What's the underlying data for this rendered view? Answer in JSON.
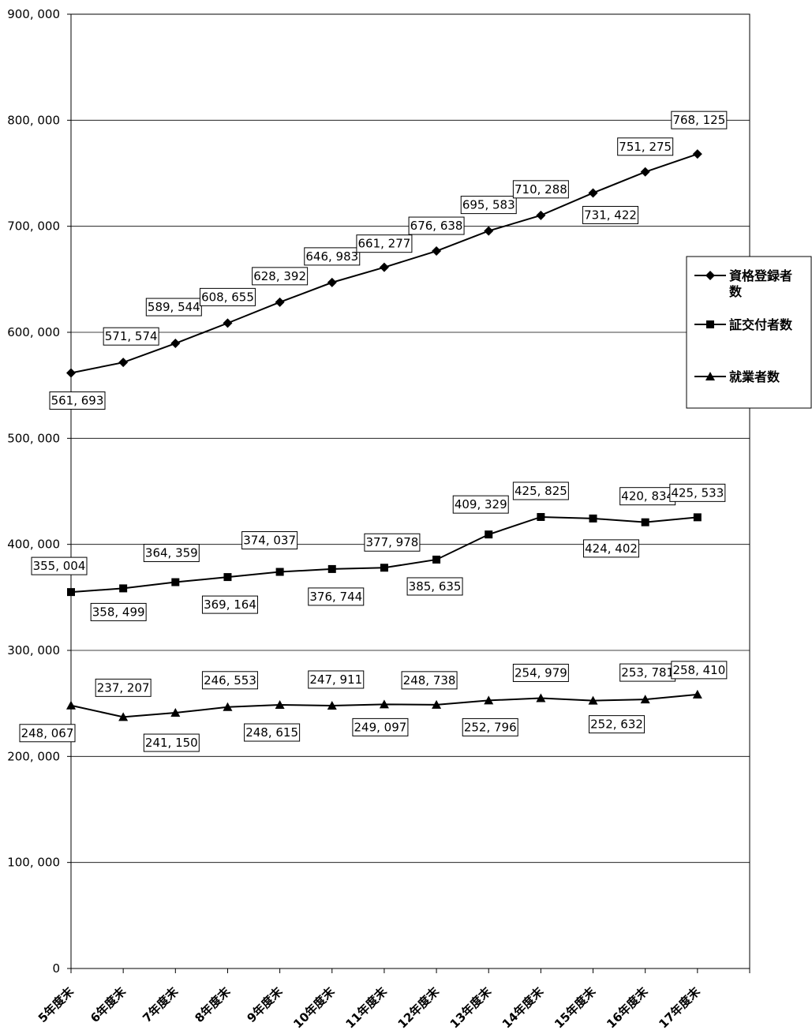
{
  "chart_data": {
    "type": "line",
    "categories": [
      "5年度末",
      "6年度末",
      "7年度末",
      "8年度末",
      "9年度末",
      "10年度末",
      "11年度末",
      "12年度末",
      "13年度末",
      "14年度末",
      "15年度末",
      "16年度末",
      "17年度末"
    ],
    "ylim": [
      0,
      900000
    ],
    "yticks": [
      0,
      100000,
      200000,
      300000,
      400000,
      500000,
      600000,
      700000,
      800000,
      900000
    ],
    "ytick_labels": [
      "0",
      "100, 000",
      "200, 000",
      "300, 000",
      "400, 000",
      "500, 000",
      "600, 000",
      "700, 000",
      "800, 000",
      "900, 000"
    ],
    "grid": true,
    "legend_position": "right",
    "series": [
      {
        "name": "資格登録者数",
        "marker": "diamond",
        "values": [
          561693,
          571574,
          589544,
          608655,
          628392,
          646983,
          661277,
          676638,
          695583,
          710288,
          731422,
          751275,
          768125
        ],
        "labels": [
          "561, 693",
          "571, 574",
          "589, 544",
          "608, 655",
          "628, 392",
          "646, 983",
          "661, 277",
          "676, 638",
          "695, 583",
          "710, 288",
          "731, 422",
          "751, 275",
          "768, 125"
        ]
      },
      {
        "name": "証交付者数",
        "marker": "square",
        "values": [
          355004,
          358499,
          364359,
          369164,
          374037,
          376744,
          377978,
          385635,
          409329,
          425825,
          424402,
          420834,
          425533
        ],
        "labels": [
          "355, 004",
          "358, 499",
          "364, 359",
          "369, 164",
          "374, 037",
          "376, 744",
          "377, 978",
          "385, 635",
          "409, 329",
          "425, 825",
          "424, 402",
          "420, 834",
          "425, 533"
        ]
      },
      {
        "name": "就業者数",
        "marker": "triangle",
        "values": [
          248067,
          237207,
          241150,
          246553,
          248615,
          247911,
          249097,
          248738,
          252796,
          254979,
          252632,
          253781,
          258410
        ],
        "labels": [
          "248, 067",
          "237, 207",
          "241, 150",
          "246, 553",
          "248, 615",
          "247, 911",
          "249, 097",
          "248, 738",
          "252, 796",
          "254, 979",
          "252, 632",
          "253, 781",
          "258, 410"
        ]
      }
    ]
  },
  "legend": {
    "line1_a": "資格登録者",
    "line1_b": "数",
    "line2": "証交付者数",
    "line3": "就業者数"
  }
}
